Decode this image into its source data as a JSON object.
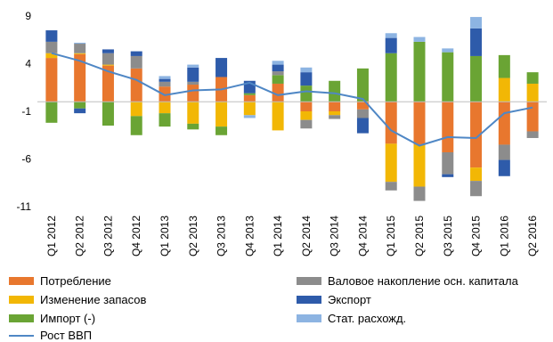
{
  "chart_data": {
    "type": "bar",
    "stacked": true,
    "categories": [
      "Q1 2012",
      "Q2 2012",
      "Q3 2012",
      "Q4 2012",
      "Q1 2013",
      "Q2 2013",
      "Q3 2013",
      "Q4 2013",
      "Q1 2014",
      "Q2 2014",
      "Q3 2014",
      "Q4 2014",
      "Q1 2015",
      "Q2 2015",
      "Q3 2015",
      "Q4 2015",
      "Q1 2016",
      "Q2 2016"
    ],
    "y_ticks": [
      "9",
      "4",
      "-1",
      "-6",
      "-11"
    ],
    "ylim": [
      -11,
      9
    ],
    "grid": false,
    "legend_position": "bottom",
    "series": [
      {
        "name": "Потребление",
        "color": "#E8772E",
        "values": [
          4.6,
          5.0,
          3.8,
          3.5,
          1.6,
          1.8,
          2.6,
          0.7,
          1.9,
          -1.0,
          -1.0,
          -0.8,
          -4.4,
          -4.5,
          -5.3,
          -6.9,
          -4.5,
          -3.1
        ]
      },
      {
        "name": "Изменение запасов",
        "color": "#F2B705",
        "values": [
          0.5,
          0.1,
          0.1,
          -1.5,
          -1.2,
          -2.3,
          -2.6,
          -1.4,
          -3.0,
          -0.9,
          -0.4,
          0.0,
          -4.0,
          -4.4,
          0.0,
          -1.4,
          2.5,
          1.9
        ]
      },
      {
        "name": "Импорт (-)",
        "color": "#6AA434",
        "values": [
          -2.2,
          -0.7,
          -2.5,
          -2.0,
          -1.4,
          -0.6,
          -0.9,
          0.2,
          0.9,
          1.7,
          2.2,
          3.5,
          5.1,
          6.3,
          5.2,
          4.8,
          2.4,
          1.2
        ]
      },
      {
        "name": "Валовое накопление осн. капитала",
        "color": "#8C8C8C",
        "values": [
          1.2,
          1.0,
          1.2,
          1.3,
          0.5,
          0.3,
          0.0,
          0.0,
          0.4,
          -0.9,
          -0.4,
          -0.9,
          -0.9,
          -1.5,
          -2.3,
          -1.6,
          -1.6,
          -0.7
        ]
      },
      {
        "name": "Экспорт",
        "color": "#2E5BAA",
        "values": [
          1.2,
          -0.5,
          0.4,
          0.5,
          0.3,
          1.5,
          2.0,
          1.3,
          0.7,
          1.4,
          0.0,
          -1.6,
          1.6,
          0.0,
          -0.3,
          2.9,
          -1.7,
          0.0
        ]
      },
      {
        "name": "Стат. расхожд.",
        "color": "#8DB4E2",
        "values": [
          0.0,
          0.1,
          0.0,
          0.0,
          0.3,
          0.3,
          0.0,
          -0.3,
          0.4,
          0.5,
          0.0,
          0.0,
          0.5,
          0.5,
          0.4,
          1.2,
          0.0,
          0.0
        ]
      }
    ],
    "line": {
      "name": "Рост ВВП",
      "color": "#4F87C5",
      "values": [
        5.1,
        4.3,
        3.2,
        2.3,
        0.7,
        1.2,
        1.3,
        2.0,
        0.7,
        1.1,
        0.9,
        0.3,
        -3.0,
        -4.6,
        -3.7,
        -3.8,
        -1.2,
        -0.6
      ]
    }
  },
  "legend": {
    "items": [
      {
        "label": "Потребление",
        "color": "#E8772E",
        "kind": "bar"
      },
      {
        "label": "Валовое накопление  осн. капитала",
        "color": "#8C8C8C",
        "kind": "bar"
      },
      {
        "label": "Изменение запасов",
        "color": "#F2B705",
        "kind": "bar"
      },
      {
        "label": "Экспорт",
        "color": "#2E5BAA",
        "kind": "bar"
      },
      {
        "label": "Импорт (-)",
        "color": "#6AA434",
        "kind": "bar"
      },
      {
        "label": "Стат. расхожд.",
        "color": "#8DB4E2",
        "kind": "bar"
      },
      {
        "label": "Рост ВВП",
        "color": "#4F87C5",
        "kind": "line"
      }
    ]
  }
}
